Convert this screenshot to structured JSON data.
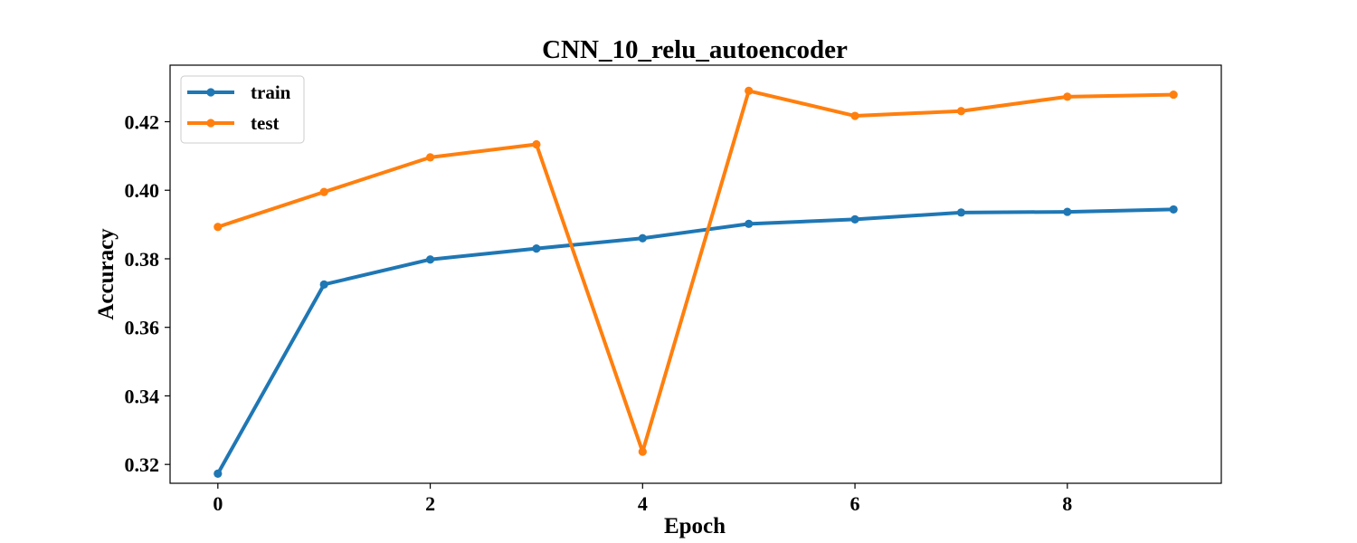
{
  "chart_data": {
    "type": "line",
    "title": "CNN_10_relu_autoencoder",
    "xlabel": "Epoch",
    "ylabel": "Accuracy",
    "x": [
      0,
      1,
      2,
      3,
      4,
      5,
      6,
      7,
      8,
      9
    ],
    "xticks": [
      "0",
      "2",
      "4",
      "6",
      "8"
    ],
    "yticks": [
      "0.32",
      "0.34",
      "0.36",
      "0.38",
      "0.40",
      "0.42"
    ],
    "xlim": [
      -0.45,
      9.45
    ],
    "ylim": [
      0.3145,
      0.4365
    ],
    "grid": false,
    "legend_position": "top-left",
    "series": [
      {
        "name": "train",
        "color": "#1f77b4",
        "values": [
          0.3173,
          0.3725,
          0.3798,
          0.383,
          0.386,
          0.3902,
          0.3915,
          0.3935,
          0.3937,
          0.3944
        ]
      },
      {
        "name": "test",
        "color": "#ff7f0e",
        "values": [
          0.3893,
          0.3995,
          0.4096,
          0.4134,
          0.3237,
          0.429,
          0.4217,
          0.4231,
          0.4273,
          0.4279
        ]
      }
    ]
  }
}
